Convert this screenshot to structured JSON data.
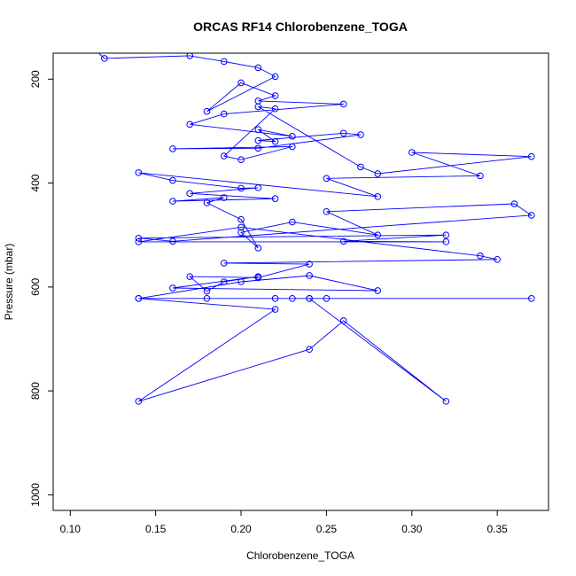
{
  "chart_data": {
    "type": "line",
    "title": "ORCAS RF14 Chlorobenzene_TOGA",
    "xlabel": "Chlorobenzene_TOGA",
    "ylabel": "Pressure (mbar)",
    "xlim": [
      0.09,
      0.38
    ],
    "ylim": [
      1030,
      150
    ],
    "y_reversed": true,
    "x_ticks": [
      0.1,
      0.15,
      0.2,
      0.25,
      0.3,
      0.35
    ],
    "x_tick_labels": [
      "0.10",
      "0.15",
      "0.20",
      "0.25",
      "0.30",
      "0.35"
    ],
    "y_ticks": [
      200,
      400,
      600,
      800,
      1000
    ],
    "y_tick_labels": [
      "200",
      "400",
      "600",
      "800",
      "1000"
    ],
    "grid": false,
    "series": [
      {
        "name": "Chlorobenzene_TOGA",
        "color": "#0000ff",
        "marker": "open-circle",
        "connect_first_to_above": true,
        "x": [
          0.12,
          0.17,
          0.19,
          0.21,
          0.22,
          0.18,
          0.2,
          0.22,
          0.21,
          0.26,
          0.19,
          0.17,
          0.23,
          0.21,
          0.22,
          0.21,
          0.26,
          0.27,
          0.21,
          0.16,
          0.23,
          0.2,
          0.19,
          0.22,
          0.21,
          0.27,
          0.28,
          0.37,
          0.3,
          0.34,
          0.25,
          0.28,
          0.14,
          0.16,
          0.2,
          0.21,
          0.17,
          0.22,
          0.16,
          0.19,
          0.18,
          0.2,
          0.21,
          0.2,
          0.23,
          0.28,
          0.25,
          0.36,
          0.37,
          0.16,
          0.14,
          0.32,
          0.26,
          0.32,
          0.14,
          0.2,
          0.34,
          0.35,
          0.19,
          0.24,
          0.21,
          0.17,
          0.18,
          0.19,
          0.21,
          0.16,
          0.28,
          0.24,
          0.2,
          0.14,
          0.18,
          0.23,
          0.25,
          0.24,
          0.37,
          0.14,
          0.22,
          0.14,
          0.24,
          0.26,
          0.32,
          0.24,
          0.22
        ]
      }
    ],
    "points_y": [
      160,
      155,
      166,
      178,
      195,
      262,
      207,
      232,
      242,
      248,
      267,
      287,
      310,
      297,
      320,
      318,
      304,
      307,
      333,
      334,
      330,
      355,
      348,
      257,
      253,
      369,
      382,
      349,
      341,
      386,
      391,
      426,
      380,
      395,
      410,
      409,
      420,
      430,
      435,
      428,
      438,
      470,
      525,
      495,
      475,
      500,
      455,
      440,
      462,
      512,
      506,
      500,
      512,
      513,
      513,
      485,
      540,
      547,
      554,
      556,
      582,
      580,
      608,
      590,
      580,
      602,
      607,
      578,
      590,
      622,
      622,
      622,
      622,
      622,
      622,
      622,
      643,
      820,
      720,
      665,
      820,
      622,
      622
    ]
  }
}
